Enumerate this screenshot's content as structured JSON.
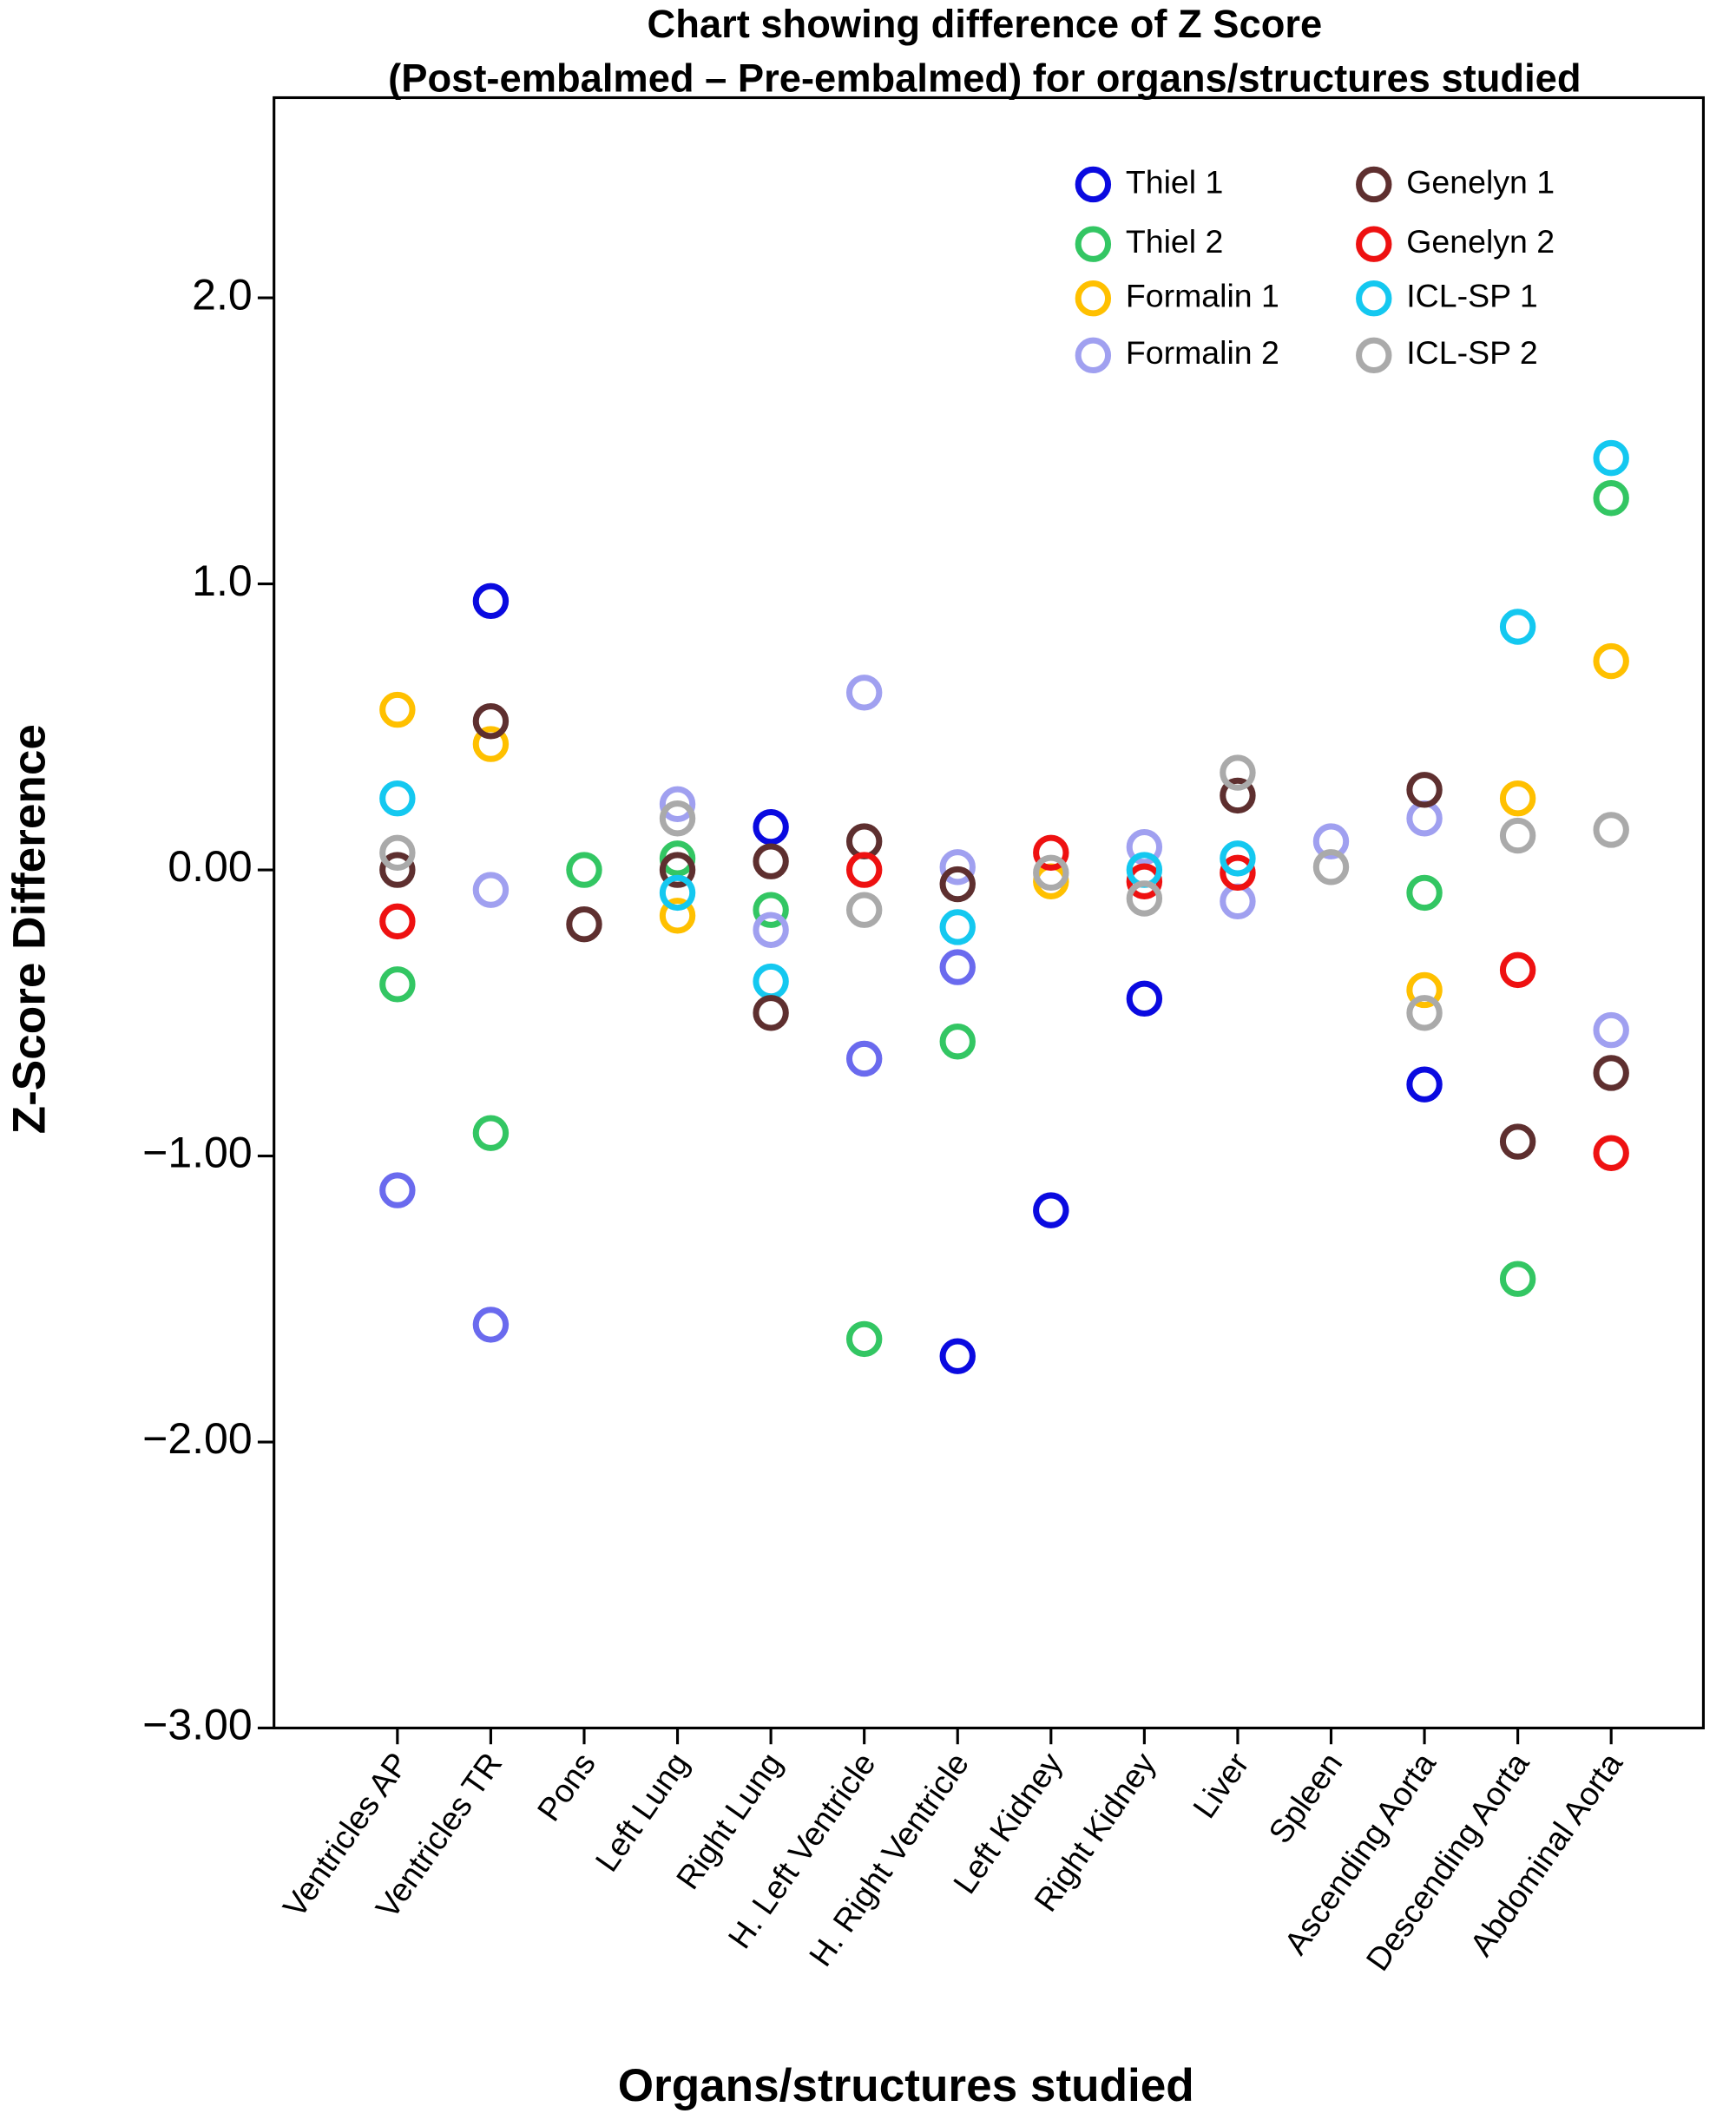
{
  "chart_data": {
    "type": "scatter",
    "title": [
      "Chart showing difference of Z Score",
      "(Post-embalmed – Pre-embalmed) for organs/structures studied"
    ],
    "x_label": "Organs/structures studied",
    "y_label": "Z-Score Difference",
    "categories": [
      "Ventricles AP",
      "Ventricles TR",
      "Pons",
      "Left Lung",
      "Right Lung",
      "H. Left Ventricle",
      "H. Right Ventricle",
      "Left Kidney",
      "Right Kidney",
      "Liver",
      "Spleen",
      "Ascending Aorta",
      "Descending Aorta",
      "Abdominal Aorta"
    ],
    "ylim": [
      -3,
      2.7
    ],
    "yticks": [
      {
        "value": -3,
        "label": "−3.00"
      },
      {
        "value": -2,
        "label": "−2.00"
      },
      {
        "value": -1,
        "label": "−1.00"
      },
      {
        "value": 0,
        "label": "0.00"
      },
      {
        "value": 1,
        "label": "1.0"
      },
      {
        "value": 2,
        "label": "2.0"
      }
    ],
    "series": [
      {
        "name": "Thiel 1",
        "color": "#0a0ae0",
        "values": [
          null,
          0.94,
          null,
          null,
          0.15,
          null,
          -1.7,
          -1.19,
          -0.45,
          null,
          null,
          -0.75,
          null,
          null
        ]
      },
      {
        "name": "Thiel 2",
        "color": "#33c663",
        "values": [
          -0.4,
          -0.92,
          0.0,
          0.04,
          -0.14,
          -1.64,
          -0.6,
          null,
          null,
          null,
          null,
          -0.08,
          -1.43,
          1.3
        ]
      },
      {
        "name": "Formalin 1",
        "color": "#ffc000",
        "values": [
          0.56,
          0.44,
          null,
          -0.16,
          null,
          null,
          null,
          -0.04,
          null,
          null,
          null,
          -0.42,
          0.25,
          0.73
        ]
      },
      {
        "name": "Formalin 2",
        "color": "#a0a0f0",
        "values": [
          null,
          -0.07,
          null,
          0.23,
          -0.21,
          0.62,
          0.01,
          null,
          0.08,
          -0.11,
          0.1,
          0.18,
          null,
          -0.56
        ]
      },
      {
        "name": "Genelyn 1",
        "color": "#5e2f2f",
        "values": [
          0.0,
          0.52,
          -0.19,
          0.0,
          0.03,
          0.1,
          -0.05,
          null,
          null,
          0.26,
          null,
          0.28,
          -0.95,
          -0.71
        ]
      },
      {
        "name": "Genelyn 2",
        "color": "#ee1111",
        "values": [
          -0.18,
          null,
          null,
          null,
          null,
          0.0,
          null,
          0.06,
          -0.04,
          -0.01,
          null,
          null,
          -0.35,
          -0.99
        ]
      },
      {
        "name": "ICL-SP 1",
        "color": "#14c8f0",
        "values": [
          0.25,
          null,
          null,
          -0.08,
          -0.39,
          null,
          -0.2,
          null,
          0.0,
          0.04,
          null,
          null,
          0.85,
          1.44
        ]
      },
      {
        "name": "ICL-SP 2",
        "color": "#aaaaaa",
        "values": [
          0.06,
          null,
          null,
          0.18,
          null,
          -0.14,
          null,
          -0.01,
          -0.1,
          0.34,
          0.01,
          -0.5,
          0.12,
          0.14
        ]
      },
      {
        "color": "#6a6aee",
        "values": [
          -1.12,
          -1.59,
          null,
          null,
          null,
          -0.66,
          -0.34,
          null,
          null,
          null,
          null,
          null,
          null,
          null
        ]
      },
      {
        "color": "#5e2f2f",
        "values": [
          null,
          null,
          null,
          null,
          -0.5,
          null,
          null,
          null,
          null,
          null,
          null,
          null,
          null,
          null
        ]
      }
    ]
  }
}
